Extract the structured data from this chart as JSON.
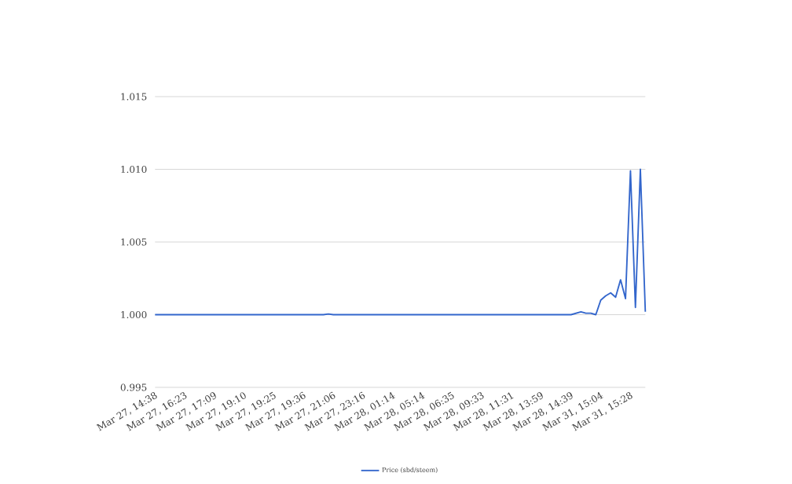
{
  "chart_data": {
    "type": "line",
    "categories": [
      "Mar 27, 14:38",
      null,
      null,
      null,
      null,
      null,
      "Mar 27, 16:23",
      null,
      null,
      null,
      null,
      null,
      "Mar 27, 17:09",
      null,
      null,
      null,
      null,
      null,
      "Mar 27, 19:10",
      null,
      null,
      null,
      null,
      null,
      "Mar 27, 19:25",
      null,
      null,
      null,
      null,
      null,
      "Mar 27, 19:36",
      null,
      null,
      null,
      null,
      null,
      "Mar 27, 21:06",
      null,
      null,
      null,
      null,
      null,
      "Mar 27, 23:16",
      null,
      null,
      null,
      null,
      null,
      "Mar 28, 01:14",
      null,
      null,
      null,
      null,
      null,
      "Mar 28, 05:14",
      null,
      null,
      null,
      null,
      null,
      "Mar 28, 06:35",
      null,
      null,
      null,
      null,
      null,
      "Mar 28, 09:33",
      null,
      null,
      null,
      null,
      null,
      "Mar 28, 11:31",
      null,
      null,
      null,
      null,
      null,
      "Mar 28, 13:59",
      null,
      null,
      null,
      null,
      null,
      "Mar 28, 14:39",
      null,
      null,
      null,
      null,
      null,
      "Mar 31, 15:04",
      null,
      null,
      null,
      null,
      null,
      "Mar 31, 15:28",
      null,
      null,
      null
    ],
    "series": [
      {
        "name": "Price (sbd/steem)",
        "color": "#3366cc",
        "values": [
          1.0,
          1.0,
          1.0,
          1.0,
          1.0,
          1.0,
          1.0,
          1.0,
          1.0,
          1.0,
          1.0,
          1.0,
          1.0,
          1.0,
          1.0,
          1.0,
          1.0,
          1.0,
          1.0,
          1.0,
          1.0,
          1.0,
          1.0,
          1.0,
          1.0,
          1.0,
          1.0,
          1.0,
          1.0,
          1.0,
          1.0,
          1.0,
          1.0,
          1.0,
          1.0,
          1.00005,
          1.0,
          1.0,
          1.0,
          1.0,
          1.0,
          1.0,
          1.0,
          1.0,
          1.0,
          1.0,
          1.0,
          1.0,
          1.0,
          1.0,
          1.0,
          1.0,
          1.0,
          1.0,
          1.0,
          1.0,
          1.0,
          1.0,
          1.0,
          1.0,
          1.0,
          1.0,
          1.0,
          1.0,
          1.0,
          1.0,
          1.0,
          1.0,
          1.0,
          1.0,
          1.0,
          1.0,
          1.0,
          1.0,
          1.0,
          1.0,
          1.0,
          1.0,
          1.0,
          1.0,
          1.0,
          1.0,
          1.0,
          1.0,
          1.0,
          1.0001,
          1.0002,
          1.0001,
          1.0001,
          1.0,
          1.001,
          1.0013,
          1.0015,
          1.0012,
          1.0024,
          1.0011,
          1.0099,
          1.0005,
          1.01,
          1.0002
        ]
      }
    ],
    "ylim": [
      0.995,
      1.015
    ],
    "yticks": [
      0.995,
      {
        "value": 1.0,
        "label": "1.000"
      },
      1.005,
      {
        "value": 1.01,
        "label": "1.010"
      },
      1.015
    ],
    "grid": "y",
    "legend": "bottom",
    "marker": "none",
    "line_style": "solid"
  }
}
